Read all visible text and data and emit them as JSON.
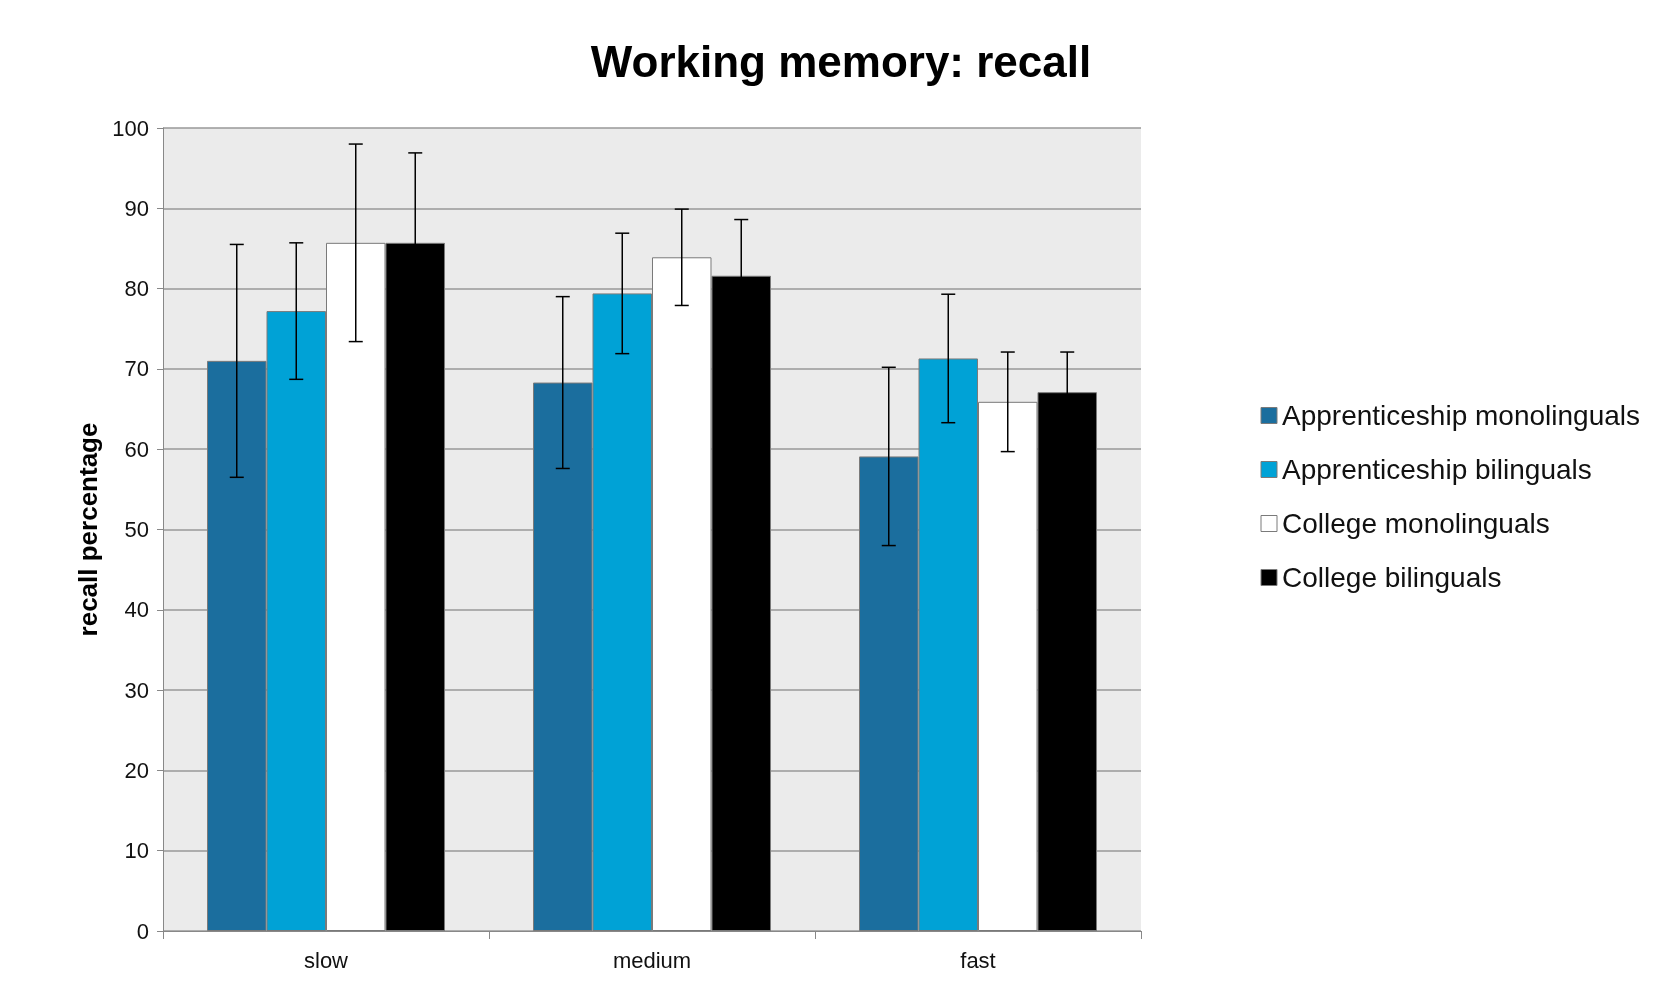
{
  "chart_data": {
    "type": "bar",
    "title": "Working memory: recall",
    "ylabel": "recall percentage",
    "categories": [
      "slow",
      "medium",
      "fast"
    ],
    "series": [
      {
        "name": "Apprenticeship monolinguals",
        "color": "#1b6e9e",
        "values": [
          71,
          68.3,
          59.1
        ],
        "errors": [
          14.5,
          10.7,
          11.1
        ]
      },
      {
        "name": "Apprenticeship bilinguals",
        "color": "#00a2d6",
        "values": [
          77.2,
          79.4,
          71.3
        ],
        "errors": [
          8.5,
          7.5,
          8
        ]
      },
      {
        "name": "College monolinguals",
        "color": "#ffffff",
        "values": [
          85.7,
          83.9,
          65.9
        ],
        "errors": [
          12.3,
          6,
          6.2
        ]
      },
      {
        "name": "College bilinguals",
        "color": "#000000",
        "values": [
          85.7,
          81.6,
          67.1
        ],
        "errors": [
          11.2,
          7,
          5
        ]
      }
    ],
    "ylim": [
      0,
      100
    ],
    "yticks": [
      0,
      10,
      20,
      30,
      40,
      50,
      60,
      70,
      80,
      90,
      100
    ],
    "grid": "y",
    "legend": "right"
  }
}
